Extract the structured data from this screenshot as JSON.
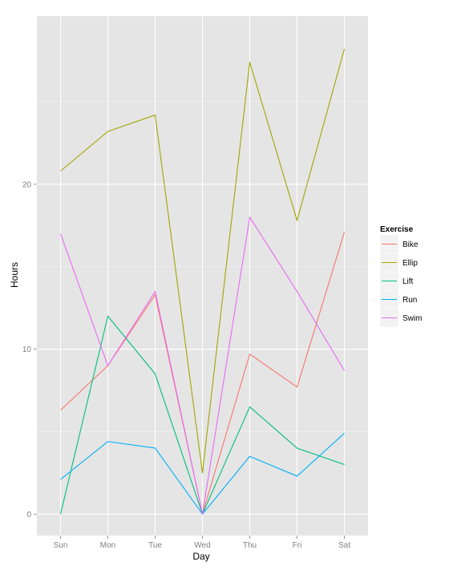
{
  "chart_data": {
    "type": "line",
    "xlabel": "Day",
    "ylabel": "Hours",
    "categories": [
      "Sun",
      "Mon",
      "Tue",
      "Wed",
      "Thu",
      "Fri",
      "Sat"
    ],
    "ylim": [
      -1.3,
      30.2
    ],
    "yticks": [
      0,
      10,
      20
    ],
    "grid": true,
    "legend_position": "right",
    "legend_title": "Exercise",
    "series": [
      {
        "name": "Bike",
        "color": "#F8766D",
        "values": [
          6.3,
          9.0,
          13.3,
          0,
          9.7,
          7.7,
          17.1
        ]
      },
      {
        "name": "Ellip",
        "color": "#A3A500",
        "values": [
          20.8,
          23.2,
          24.2,
          2.5,
          27.4,
          17.8,
          28.2
        ]
      },
      {
        "name": "Lift",
        "color": "#00BF7D",
        "values": [
          0,
          12.0,
          8.5,
          0,
          6.5,
          4.0,
          3.0
        ]
      },
      {
        "name": "Run",
        "color": "#00B0F6",
        "values": [
          2.1,
          4.4,
          4.0,
          0,
          3.5,
          2.3,
          4.9
        ]
      },
      {
        "name": "Swim",
        "color": "#E76BF3",
        "values": [
          17.0,
          9.0,
          13.5,
          0,
          18.0,
          13.5,
          8.7
        ]
      }
    ]
  }
}
